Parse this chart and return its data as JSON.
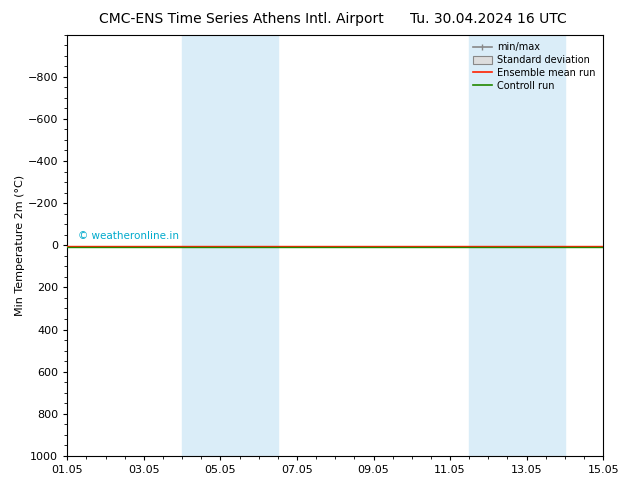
{
  "title_left": "CMC-ENS Time Series Athens Intl. Airport",
  "title_right": "Tu. 30.04.2024 16 UTC",
  "ylabel": "Min Temperature 2m (°C)",
  "ylim_bottom": 1000,
  "ylim_top": -1000,
  "yticks": [
    -800,
    -600,
    -400,
    -200,
    0,
    200,
    400,
    600,
    800,
    1000
  ],
  "xtick_labels": [
    "01.05",
    "03.05",
    "05.05",
    "07.05",
    "09.05",
    "11.05",
    "13.05",
    "15.05"
  ],
  "xtick_positions": [
    0,
    2,
    4,
    6,
    8,
    10,
    12,
    14
  ],
  "x_min": 0,
  "x_max": 14,
  "watermark": "© weatheronline.in",
  "watermark_color": "#00aacc",
  "control_run_color": "#228800",
  "ensemble_mean_color": "#ff2200",
  "shade_bands": [
    [
      3.0,
      4.0
    ],
    [
      4.0,
      5.5
    ],
    [
      10.5,
      11.5
    ],
    [
      11.5,
      13.0
    ]
  ],
  "shade_color": "#daedf8",
  "legend_minmax_color": "#888888",
  "legend_std_facecolor": "#dddddd",
  "legend_std_edgecolor": "#888888",
  "background_color": "#ffffff",
  "title_fontsize": 10,
  "tick_fontsize": 8,
  "ylabel_fontsize": 8
}
